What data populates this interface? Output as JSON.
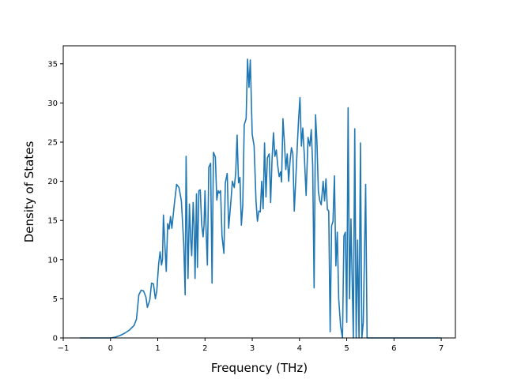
{
  "chart_data": {
    "type": "line",
    "title": "",
    "xlabel": "Frequency (THz)",
    "ylabel": "Density of States",
    "xlim": [
      -1,
      7.3
    ],
    "ylim": [
      0,
      37.3
    ],
    "xticks": [
      -1,
      0,
      1,
      2,
      3,
      4,
      5,
      6,
      7
    ],
    "yticks": [
      0,
      5,
      10,
      15,
      20,
      25,
      30,
      35
    ],
    "grid": false,
    "legend": "none",
    "series": [
      {
        "color": "#1f77b4",
        "points": [
          [
            -0.65,
            0
          ],
          [
            0,
            0
          ],
          [
            0.1,
            0.1
          ],
          [
            0.2,
            0.3
          ],
          [
            0.3,
            0.6
          ],
          [
            0.4,
            1.0
          ],
          [
            0.5,
            1.6
          ],
          [
            0.55,
            2.4
          ],
          [
            0.6,
            5.5
          ],
          [
            0.65,
            6.1
          ],
          [
            0.7,
            6.0
          ],
          [
            0.75,
            5.2
          ],
          [
            0.78,
            3.9
          ],
          [
            0.83,
            4.8
          ],
          [
            0.87,
            7.0
          ],
          [
            0.91,
            6.9
          ],
          [
            0.95,
            5.0
          ],
          [
            0.98,
            6.0
          ],
          [
            1.02,
            9.5
          ],
          [
            1.05,
            11.0
          ],
          [
            1.08,
            9.3
          ],
          [
            1.1,
            10.0
          ],
          [
            1.12,
            15.7
          ],
          [
            1.15,
            12.0
          ],
          [
            1.18,
            8.5
          ],
          [
            1.21,
            14.6
          ],
          [
            1.24,
            13.9
          ],
          [
            1.27,
            15.5
          ],
          [
            1.3,
            14.0
          ],
          [
            1.35,
            17.0
          ],
          [
            1.4,
            19.6
          ],
          [
            1.45,
            19.2
          ],
          [
            1.5,
            17.5
          ],
          [
            1.55,
            12.0
          ],
          [
            1.58,
            5.5
          ],
          [
            1.6,
            23.2
          ],
          [
            1.62,
            14.0
          ],
          [
            1.64,
            7.6
          ],
          [
            1.67,
            17.1
          ],
          [
            1.7,
            12.4
          ],
          [
            1.72,
            10.5
          ],
          [
            1.75,
            17.3
          ],
          [
            1.77,
            14.5
          ],
          [
            1.79,
            7.6
          ],
          [
            1.82,
            18.4
          ],
          [
            1.84,
            9.0
          ],
          [
            1.87,
            18.8
          ],
          [
            1.9,
            18.9
          ],
          [
            1.93,
            14.5
          ],
          [
            1.96,
            12.9
          ],
          [
            1.98,
            14.5
          ],
          [
            2.0,
            18.8
          ],
          [
            2.02,
            14.3
          ],
          [
            2.05,
            9.3
          ],
          [
            2.08,
            21.8
          ],
          [
            2.12,
            22.3
          ],
          [
            2.15,
            7.0
          ],
          [
            2.18,
            23.7
          ],
          [
            2.22,
            23.1
          ],
          [
            2.25,
            17.6
          ],
          [
            2.28,
            18.8
          ],
          [
            2.3,
            18.5
          ],
          [
            2.33,
            18.8
          ],
          [
            2.36,
            13.0
          ],
          [
            2.4,
            10.8
          ],
          [
            2.43,
            19.8
          ],
          [
            2.47,
            21.0
          ],
          [
            2.5,
            14.0
          ],
          [
            2.55,
            17.5
          ],
          [
            2.58,
            20.0
          ],
          [
            2.62,
            19.2
          ],
          [
            2.65,
            21.0
          ],
          [
            2.68,
            25.9
          ],
          [
            2.71,
            19.8
          ],
          [
            2.74,
            20.5
          ],
          [
            2.77,
            14.4
          ],
          [
            2.8,
            17.0
          ],
          [
            2.83,
            27.2
          ],
          [
            2.87,
            28.0
          ],
          [
            2.9,
            35.6
          ],
          [
            2.93,
            32.0
          ],
          [
            2.96,
            35.5
          ],
          [
            3.0,
            26.0
          ],
          [
            3.04,
            24.5
          ],
          [
            3.08,
            17.5
          ],
          [
            3.11,
            14.9
          ],
          [
            3.14,
            16.2
          ],
          [
            3.17,
            16.1
          ],
          [
            3.2,
            20.0
          ],
          [
            3.23,
            16.5
          ],
          [
            3.26,
            24.9
          ],
          [
            3.29,
            18.0
          ],
          [
            3.32,
            23.0
          ],
          [
            3.36,
            23.5
          ],
          [
            3.39,
            17.3
          ],
          [
            3.42,
            22.8
          ],
          [
            3.45,
            26.2
          ],
          [
            3.48,
            23.2
          ],
          [
            3.51,
            24.0
          ],
          [
            3.54,
            22.0
          ],
          [
            3.57,
            20.6
          ],
          [
            3.6,
            21.2
          ],
          [
            3.62,
            19.9
          ],
          [
            3.65,
            28.0
          ],
          [
            3.68,
            25.0
          ],
          [
            3.71,
            21.5
          ],
          [
            3.74,
            23.5
          ],
          [
            3.77,
            20.0
          ],
          [
            3.8,
            22.5
          ],
          [
            3.83,
            24.3
          ],
          [
            3.86,
            23.5
          ],
          [
            3.89,
            16.2
          ],
          [
            3.92,
            20.0
          ],
          [
            3.95,
            24.0
          ],
          [
            3.98,
            27.8
          ],
          [
            4.01,
            30.7
          ],
          [
            4.04,
            24.5
          ],
          [
            4.07,
            26.8
          ],
          [
            4.1,
            23.5
          ],
          [
            4.14,
            18.2
          ],
          [
            4.18,
            25.6
          ],
          [
            4.22,
            24.5
          ],
          [
            4.25,
            26.6
          ],
          [
            4.28,
            22.0
          ],
          [
            4.31,
            6.4
          ],
          [
            4.34,
            28.5
          ],
          [
            4.37,
            25.0
          ],
          [
            4.4,
            18.7
          ],
          [
            4.43,
            17.5
          ],
          [
            4.46,
            17.0
          ],
          [
            4.5,
            20.0
          ],
          [
            4.53,
            17.5
          ],
          [
            4.56,
            20.3
          ],
          [
            4.59,
            16.4
          ],
          [
            4.62,
            16.2
          ],
          [
            4.65,
            0.8
          ],
          [
            4.68,
            14.3
          ],
          [
            4.71,
            14.9
          ],
          [
            4.74,
            20.7
          ],
          [
            4.77,
            9.2
          ],
          [
            4.8,
            13.5
          ],
          [
            4.83,
            5.0
          ],
          [
            4.87,
            1.5
          ],
          [
            4.91,
            0
          ],
          [
            4.94,
            13.0
          ],
          [
            4.97,
            13.5
          ],
          [
            5.0,
            2.0
          ],
          [
            5.03,
            29.4
          ],
          [
            5.06,
            5.0
          ],
          [
            5.09,
            15.2
          ],
          [
            5.12,
            6.0
          ],
          [
            5.14,
            0
          ],
          [
            5.17,
            26.7
          ],
          [
            5.2,
            0
          ],
          [
            5.23,
            12.5
          ],
          [
            5.26,
            0
          ],
          [
            5.29,
            24.9
          ],
          [
            5.32,
            0
          ],
          [
            5.35,
            2.0
          ],
          [
            5.4,
            19.6
          ],
          [
            5.43,
            0
          ],
          [
            6.5,
            0
          ],
          [
            7.0,
            0
          ]
        ]
      }
    ]
  }
}
